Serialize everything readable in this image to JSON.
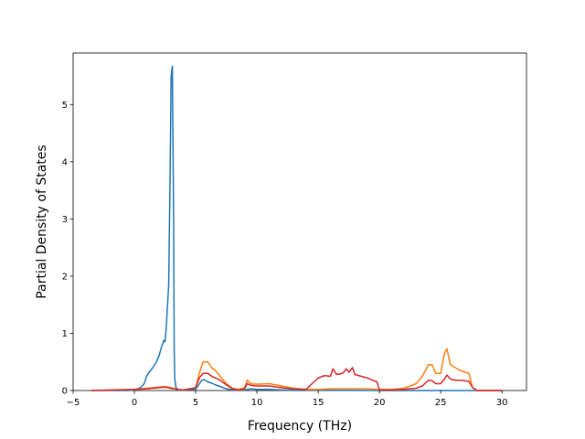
{
  "chart_data": {
    "type": "line",
    "title": "",
    "xlabel": "Frequency (THz)",
    "ylabel": "Partial Density of States",
    "xlim": [
      -5,
      32
    ],
    "ylim": [
      0,
      5.9
    ],
    "xticks": [
      -5,
      0,
      5,
      10,
      15,
      20,
      25,
      30
    ],
    "yticks": [
      0,
      1,
      2,
      3,
      4,
      5
    ],
    "grid": false,
    "legend": "none",
    "series": [
      {
        "color": "#1f77b4",
        "x": [
          -3.5,
          -0.5,
          0,
          0.5,
          0.8,
          1.0,
          1.2,
          1.5,
          1.8,
          2.0,
          2.2,
          2.4,
          2.5,
          2.6,
          2.8,
          2.9,
          3.0,
          3.05,
          3.1,
          3.2,
          3.25,
          3.3,
          3.4,
          3.6,
          4.0,
          5.0,
          5.5,
          5.7,
          6.0,
          6.3,
          6.6,
          7.0,
          7.5,
          8.0,
          9.0,
          9.5,
          10,
          11,
          12,
          13,
          14,
          20,
          30
        ],
        "y": [
          0,
          0,
          0.01,
          0.05,
          0.12,
          0.25,
          0.32,
          0.4,
          0.5,
          0.6,
          0.75,
          0.88,
          0.85,
          1.1,
          1.85,
          3.5,
          5.5,
          5.6,
          5.67,
          3.0,
          0.7,
          0.2,
          0.05,
          0.01,
          0.01,
          0.02,
          0.18,
          0.19,
          0.15,
          0.13,
          0.1,
          0.07,
          0.03,
          0.01,
          0.01,
          0.03,
          0.02,
          0.02,
          0.01,
          0.01,
          0.01,
          0.0,
          0.0
        ]
      },
      {
        "color": "#ff7f0e",
        "x": [
          -3.5,
          0,
          1,
          2,
          2.5,
          3,
          3.5,
          4,
          5,
          5.3,
          5.6,
          6.0,
          6.3,
          6.6,
          7,
          7.5,
          8,
          8.5,
          9,
          9.2,
          9.5,
          10,
          11,
          12,
          13,
          14,
          15,
          16,
          17,
          18,
          19,
          20,
          21,
          22,
          23,
          23.5,
          24,
          24.3,
          24.6,
          25.0,
          25.3,
          25.5,
          25.8,
          26.2,
          26.6,
          27.0,
          27.3,
          27.6,
          28,
          30
        ],
        "y": [
          0,
          0.02,
          0.04,
          0.06,
          0.07,
          0.05,
          0.02,
          0.01,
          0.05,
          0.3,
          0.5,
          0.5,
          0.4,
          0.35,
          0.25,
          0.12,
          0.04,
          0.02,
          0.05,
          0.18,
          0.12,
          0.11,
          0.12,
          0.08,
          0.04,
          0.02,
          0.02,
          0.03,
          0.03,
          0.03,
          0.03,
          0.02,
          0.02,
          0.04,
          0.12,
          0.25,
          0.45,
          0.45,
          0.3,
          0.3,
          0.65,
          0.73,
          0.45,
          0.4,
          0.35,
          0.32,
          0.3,
          0.05,
          0.0,
          0.0
        ]
      },
      {
        "color": "#d62728",
        "x": [
          -3.5,
          0,
          1,
          2,
          2.5,
          3,
          3.5,
          4,
          5,
          5.3,
          5.6,
          6.0,
          6.3,
          6.6,
          7,
          7.5,
          8,
          8.5,
          9,
          9.2,
          9.5,
          10,
          11,
          12,
          13,
          14,
          14.5,
          15,
          15.5,
          16,
          16.2,
          16.5,
          17,
          17.3,
          17.5,
          17.8,
          18,
          19,
          19.8,
          20,
          21,
          22,
          23,
          23.5,
          24,
          24.3,
          24.6,
          25.0,
          25.3,
          25.5,
          25.8,
          26.2,
          26.6,
          27.0,
          27.3,
          27.6,
          28,
          30
        ],
        "y": [
          0,
          0.02,
          0.03,
          0.05,
          0.06,
          0.04,
          0.02,
          0.01,
          0.05,
          0.22,
          0.3,
          0.3,
          0.25,
          0.22,
          0.18,
          0.1,
          0.03,
          0.01,
          0.03,
          0.12,
          0.09,
          0.08,
          0.08,
          0.05,
          0.03,
          0.02,
          0.12,
          0.22,
          0.26,
          0.25,
          0.38,
          0.28,
          0.3,
          0.38,
          0.32,
          0.4,
          0.28,
          0.22,
          0.15,
          0.01,
          0.01,
          0.02,
          0.04,
          0.08,
          0.18,
          0.17,
          0.12,
          0.12,
          0.2,
          0.27,
          0.2,
          0.18,
          0.18,
          0.17,
          0.16,
          0.05,
          0.0,
          0.0
        ]
      }
    ]
  }
}
